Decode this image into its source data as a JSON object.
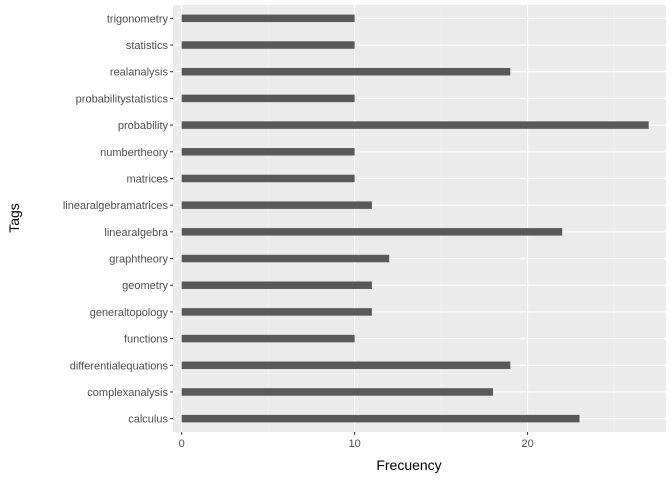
{
  "chart_data": {
    "type": "bar",
    "orientation": "horizontal",
    "title": "",
    "xlabel": "Frecuency",
    "ylabel": "Tags",
    "categories": [
      "calculus",
      "complexanalysis",
      "differentialequations",
      "functions",
      "generaltopology",
      "geometry",
      "graphtheory",
      "linearalgebra",
      "linearalgebramatrices",
      "matrices",
      "numbertheory",
      "probability",
      "probabilitystatistics",
      "realanalysis",
      "statistics",
      "trigonometry"
    ],
    "values": [
      23,
      18,
      19,
      10,
      11,
      11,
      12,
      22,
      11,
      10,
      10,
      27,
      10,
      19,
      10,
      10
    ],
    "xlim": [
      -0.5,
      28.0
    ],
    "xticks": [
      0,
      10,
      20
    ],
    "grid": true,
    "legend": "none",
    "colors": {
      "bar": "#595959",
      "panel": "#ebebeb",
      "grid_major": "#ffffff",
      "grid_minor": "#f5f5f5"
    }
  }
}
